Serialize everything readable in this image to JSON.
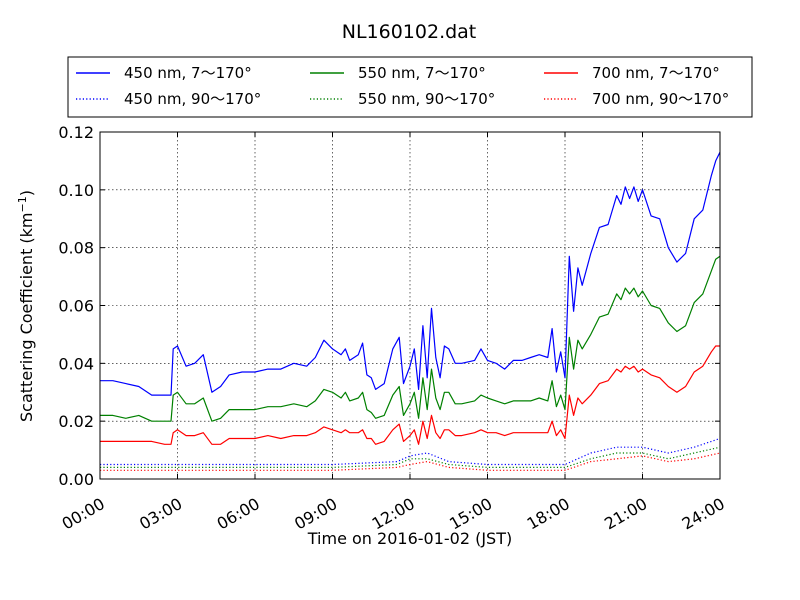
{
  "chart_data": {
    "type": "line",
    "title": "NL160102.dat",
    "xlabel": "Time on 2016-01-02 (JST)",
    "ylabel_main": "Scattering Coefficient (km",
    "ylabel_sup": "−1",
    "ylabel_close": ")",
    "xlim": [
      "2016-01-02 00:00",
      "2016-01-03 00:00"
    ],
    "ylim": [
      0,
      0.12
    ],
    "x_tick_labels": [
      "00:00",
      "03:00",
      "06:00",
      "09:00",
      "12:00",
      "15:00",
      "18:00",
      "21:00",
      "24:00"
    ],
    "x_tick_hours": [
      0,
      3,
      6,
      9,
      12,
      15,
      18,
      21,
      24
    ],
    "y_ticks": [
      0.0,
      0.02,
      0.04,
      0.06,
      0.08,
      0.1,
      0.12
    ],
    "y_tick_labels": [
      "0.00",
      "0.02",
      "0.04",
      "0.06",
      "0.08",
      "0.10",
      "0.12"
    ],
    "grid": true,
    "legend_position": "top (above plot)",
    "series": [
      {
        "name": "450 nm, 7～170°",
        "color": "#0000ff",
        "style": "solid",
        "x": [
          "00:00",
          "00:30",
          "01:00",
          "01:30",
          "02:00",
          "02:30",
          "02:45",
          "02:50",
          "03:00",
          "03:20",
          "03:40",
          "04:00",
          "04:20",
          "04:40",
          "05:00",
          "05:30",
          "06:00",
          "06:30",
          "07:00",
          "07:30",
          "08:00",
          "08:20",
          "08:40",
          "09:00",
          "09:20",
          "09:30",
          "09:40",
          "10:00",
          "10:10",
          "10:20",
          "10:30",
          "10:40",
          "11:00",
          "11:20",
          "11:35",
          "11:45",
          "12:00",
          "12:10",
          "12:20",
          "12:30",
          "12:40",
          "12:50",
          "13:00",
          "13:10",
          "13:20",
          "13:30",
          "13:45",
          "14:00",
          "14:30",
          "14:45",
          "15:00",
          "15:20",
          "15:40",
          "16:00",
          "16:20",
          "16:40",
          "17:00",
          "17:20",
          "17:30",
          "17:40",
          "17:50",
          "18:00",
          "18:10",
          "18:20",
          "18:30",
          "18:40",
          "19:00",
          "19:20",
          "19:40",
          "20:00",
          "20:10",
          "20:20",
          "20:30",
          "20:40",
          "20:50",
          "21:00",
          "21:20",
          "21:40",
          "22:00",
          "22:20",
          "22:40",
          "23:00",
          "23:20",
          "23:40",
          "23:50",
          "24:00"
        ],
        "y": [
          0.034,
          0.034,
          0.033,
          0.032,
          0.029,
          0.029,
          0.029,
          0.045,
          0.046,
          0.039,
          0.04,
          0.043,
          0.03,
          0.032,
          0.036,
          0.037,
          0.037,
          0.038,
          0.038,
          0.04,
          0.039,
          0.042,
          0.048,
          0.045,
          0.043,
          0.045,
          0.041,
          0.043,
          0.047,
          0.036,
          0.035,
          0.031,
          0.033,
          0.045,
          0.049,
          0.033,
          0.039,
          0.045,
          0.031,
          0.053,
          0.035,
          0.059,
          0.042,
          0.035,
          0.046,
          0.045,
          0.04,
          0.04,
          0.041,
          0.045,
          0.041,
          0.04,
          0.038,
          0.041,
          0.041,
          0.042,
          0.043,
          0.042,
          0.052,
          0.037,
          0.044,
          0.035,
          0.077,
          0.058,
          0.073,
          0.067,
          0.078,
          0.087,
          0.088,
          0.098,
          0.095,
          0.101,
          0.097,
          0.101,
          0.096,
          0.1,
          0.091,
          0.09,
          0.08,
          0.075,
          0.078,
          0.09,
          0.093,
          0.105,
          0.11,
          0.113
        ]
      },
      {
        "name": "450 nm, 90～170°",
        "color": "#0000ff",
        "style": "dotted",
        "x": [
          "00:00",
          "03:00",
          "06:00",
          "09:00",
          "11:30",
          "12:00",
          "12:40",
          "13:30",
          "15:00",
          "18:00",
          "19:00",
          "20:00",
          "21:00",
          "22:00",
          "23:00",
          "24:00"
        ],
        "y": [
          0.005,
          0.005,
          0.005,
          0.005,
          0.006,
          0.008,
          0.009,
          0.006,
          0.005,
          0.005,
          0.009,
          0.011,
          0.011,
          0.009,
          0.011,
          0.014
        ]
      },
      {
        "name": "550 nm, 7～170°",
        "color": "#008000",
        "style": "solid",
        "x": [
          "00:00",
          "00:30",
          "01:00",
          "01:30",
          "02:00",
          "02:30",
          "02:45",
          "02:50",
          "03:00",
          "03:20",
          "03:40",
          "04:00",
          "04:20",
          "04:40",
          "05:00",
          "05:30",
          "06:00",
          "06:30",
          "07:00",
          "07:30",
          "08:00",
          "08:20",
          "08:40",
          "09:00",
          "09:20",
          "09:30",
          "09:40",
          "10:00",
          "10:10",
          "10:20",
          "10:30",
          "10:40",
          "11:00",
          "11:20",
          "11:35",
          "11:45",
          "12:00",
          "12:10",
          "12:20",
          "12:30",
          "12:40",
          "12:50",
          "13:00",
          "13:10",
          "13:20",
          "13:30",
          "13:45",
          "14:00",
          "14:30",
          "14:45",
          "15:00",
          "15:20",
          "15:40",
          "16:00",
          "16:20",
          "16:40",
          "17:00",
          "17:20",
          "17:30",
          "17:40",
          "17:50",
          "18:00",
          "18:10",
          "18:20",
          "18:30",
          "18:40",
          "19:00",
          "19:20",
          "19:40",
          "20:00",
          "20:10",
          "20:20",
          "20:30",
          "20:40",
          "20:50",
          "21:00",
          "21:20",
          "21:40",
          "22:00",
          "22:20",
          "22:40",
          "23:00",
          "23:20",
          "23:40",
          "23:50",
          "24:00"
        ],
        "y": [
          0.022,
          0.022,
          0.021,
          0.022,
          0.02,
          0.02,
          0.02,
          0.029,
          0.03,
          0.026,
          0.026,
          0.028,
          0.02,
          0.021,
          0.024,
          0.024,
          0.024,
          0.025,
          0.025,
          0.026,
          0.025,
          0.027,
          0.031,
          0.03,
          0.028,
          0.03,
          0.027,
          0.028,
          0.03,
          0.024,
          0.023,
          0.021,
          0.022,
          0.029,
          0.032,
          0.022,
          0.026,
          0.03,
          0.021,
          0.035,
          0.024,
          0.038,
          0.028,
          0.024,
          0.03,
          0.03,
          0.026,
          0.026,
          0.027,
          0.029,
          0.028,
          0.027,
          0.026,
          0.027,
          0.027,
          0.027,
          0.028,
          0.027,
          0.034,
          0.025,
          0.029,
          0.024,
          0.049,
          0.038,
          0.048,
          0.045,
          0.05,
          0.056,
          0.057,
          0.064,
          0.062,
          0.066,
          0.064,
          0.066,
          0.063,
          0.065,
          0.06,
          0.059,
          0.054,
          0.051,
          0.053,
          0.061,
          0.064,
          0.072,
          0.076,
          0.077
        ]
      },
      {
        "name": "550 nm, 90～170°",
        "color": "#008000",
        "style": "dotted",
        "x": [
          "00:00",
          "03:00",
          "06:00",
          "09:00",
          "11:30",
          "12:00",
          "12:40",
          "13:30",
          "15:00",
          "18:00",
          "19:00",
          "20:00",
          "21:00",
          "22:00",
          "23:00",
          "24:00"
        ],
        "y": [
          0.004,
          0.004,
          0.004,
          0.004,
          0.005,
          0.007,
          0.007,
          0.005,
          0.004,
          0.004,
          0.007,
          0.009,
          0.009,
          0.007,
          0.009,
          0.011
        ]
      },
      {
        "name": "700 nm, 7～170°",
        "color": "#ff0000",
        "style": "solid",
        "x": [
          "00:00",
          "00:30",
          "01:00",
          "01:30",
          "02:00",
          "02:30",
          "02:45",
          "02:50",
          "03:00",
          "03:20",
          "03:40",
          "04:00",
          "04:20",
          "04:40",
          "05:00",
          "05:30",
          "06:00",
          "06:30",
          "07:00",
          "07:30",
          "08:00",
          "08:20",
          "08:40",
          "09:00",
          "09:20",
          "09:30",
          "09:40",
          "10:00",
          "10:10",
          "10:20",
          "10:30",
          "10:40",
          "11:00",
          "11:20",
          "11:35",
          "11:45",
          "12:00",
          "12:10",
          "12:20",
          "12:30",
          "12:40",
          "12:50",
          "13:00",
          "13:10",
          "13:20",
          "13:30",
          "13:45",
          "14:00",
          "14:30",
          "14:45",
          "15:00",
          "15:20",
          "15:40",
          "16:00",
          "16:20",
          "16:40",
          "17:00",
          "17:20",
          "17:30",
          "17:40",
          "17:50",
          "18:00",
          "18:10",
          "18:20",
          "18:30",
          "18:40",
          "19:00",
          "19:20",
          "19:40",
          "20:00",
          "20:10",
          "20:20",
          "20:30",
          "20:40",
          "20:50",
          "21:00",
          "21:20",
          "21:40",
          "22:00",
          "22:20",
          "22:40",
          "23:00",
          "23:20",
          "23:40",
          "23:50",
          "24:00"
        ],
        "y": [
          0.013,
          0.013,
          0.013,
          0.013,
          0.013,
          0.012,
          0.012,
          0.016,
          0.017,
          0.015,
          0.015,
          0.016,
          0.012,
          0.012,
          0.014,
          0.014,
          0.014,
          0.015,
          0.014,
          0.015,
          0.015,
          0.016,
          0.018,
          0.017,
          0.016,
          0.017,
          0.016,
          0.016,
          0.017,
          0.014,
          0.014,
          0.012,
          0.013,
          0.017,
          0.019,
          0.013,
          0.015,
          0.017,
          0.012,
          0.02,
          0.014,
          0.022,
          0.016,
          0.014,
          0.017,
          0.017,
          0.015,
          0.015,
          0.016,
          0.017,
          0.016,
          0.016,
          0.015,
          0.016,
          0.016,
          0.016,
          0.016,
          0.016,
          0.02,
          0.015,
          0.017,
          0.014,
          0.029,
          0.022,
          0.028,
          0.026,
          0.029,
          0.033,
          0.034,
          0.038,
          0.037,
          0.039,
          0.038,
          0.039,
          0.037,
          0.038,
          0.036,
          0.035,
          0.032,
          0.03,
          0.032,
          0.037,
          0.039,
          0.044,
          0.046,
          0.046
        ]
      },
      {
        "name": "700 nm, 90～170°",
        "color": "#ff0000",
        "style": "dotted",
        "x": [
          "00:00",
          "03:00",
          "06:00",
          "09:00",
          "11:30",
          "12:00",
          "12:40",
          "13:30",
          "15:00",
          "18:00",
          "19:00",
          "20:00",
          "21:00",
          "22:00",
          "23:00",
          "24:00"
        ],
        "y": [
          0.003,
          0.003,
          0.003,
          0.003,
          0.004,
          0.005,
          0.006,
          0.004,
          0.003,
          0.003,
          0.006,
          0.007,
          0.008,
          0.006,
          0.007,
          0.009
        ]
      }
    ]
  }
}
